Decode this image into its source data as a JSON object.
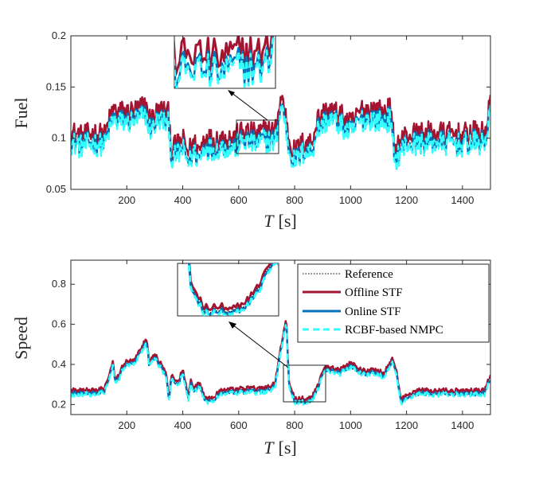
{
  "chart_data": [
    {
      "type": "line",
      "ylabel": "Fuel",
      "xlabel_var": "T",
      "xlabel_unit": "[s]",
      "xlim": [
        0,
        1500
      ],
      "ylim": [
        0.05,
        0.2
      ],
      "xticks": [
        200,
        400,
        600,
        800,
        1000,
        1200,
        1400
      ],
      "xtick_labels": [
        "200",
        "400",
        "600",
        "800",
        "1000",
        "1200",
        "1400"
      ],
      "yticks": [
        0.05,
        0.1,
        0.15,
        0.2
      ],
      "ytick_labels": [
        "0.05",
        "0.1",
        "0.15",
        "0.2"
      ],
      "zoom_window_x": [
        595,
        745
      ],
      "zoom_window_y": [
        0.085,
        0.117
      ],
      "baseline_x": [
        0,
        40,
        80,
        120,
        150,
        160,
        200,
        240,
        270,
        280,
        320,
        350,
        360,
        380,
        400,
        420,
        440,
        460,
        480,
        500,
        540,
        580,
        620,
        660,
        700,
        730,
        750,
        760,
        780,
        800,
        840,
        860,
        880,
        920,
        960,
        1000,
        1040,
        1080,
        1120,
        1140,
        1160,
        1180,
        1200,
        1240,
        1300,
        1360,
        1400,
        1440,
        1480,
        1500
      ],
      "baseline_y": [
        0.098,
        0.093,
        0.097,
        0.094,
        0.12,
        0.118,
        0.117,
        0.12,
        0.124,
        0.11,
        0.12,
        0.115,
        0.08,
        0.085,
        0.09,
        0.078,
        0.088,
        0.08,
        0.095,
        0.09,
        0.093,
        0.092,
        0.099,
        0.095,
        0.1,
        0.097,
        0.13,
        0.128,
        0.09,
        0.078,
        0.09,
        0.087,
        0.11,
        0.12,
        0.115,
        0.105,
        0.12,
        0.12,
        0.117,
        0.12,
        0.08,
        0.09,
        0.095,
        0.096,
        0.097,
        0.096,
        0.095,
        0.097,
        0.096,
        0.13
      ],
      "series": [
        {
          "name": "Offline STF",
          "color": "#a2142f",
          "offset": 0.008
        },
        {
          "name": "Online STF",
          "color": "#0072bd",
          "offset": 0.0
        },
        {
          "name": "RCBF-based NMPC",
          "color": "#33ffff",
          "offset": -0.002
        }
      ]
    },
    {
      "type": "line",
      "ylabel": "Speed",
      "xlabel_var": "T",
      "xlabel_unit": "[s]",
      "xlim": [
        0,
        1500
      ],
      "ylim": [
        0.15,
        0.92
      ],
      "xticks": [
        200,
        400,
        600,
        800,
        1000,
        1200,
        1400
      ],
      "xtick_labels": [
        "200",
        "400",
        "600",
        "800",
        "1000",
        "1200",
        "1400"
      ],
      "yticks": [
        0.2,
        0.4,
        0.6,
        0.8
      ],
      "ytick_labels": [
        "0.2",
        "0.4",
        "0.6",
        "0.8"
      ],
      "zoom_window_x": [
        760,
        915
      ],
      "zoom_window_y": [
        0.2,
        0.37
      ],
      "baseline_x": [
        0,
        60,
        120,
        150,
        160,
        190,
        230,
        270,
        280,
        300,
        340,
        350,
        360,
        380,
        400,
        420,
        430,
        440,
        460,
        480,
        500,
        540,
        600,
        660,
        700,
        730,
        760,
        770,
        780,
        800,
        840,
        860,
        880,
        900,
        920,
        960,
        1000,
        1040,
        1080,
        1120,
        1140,
        1150,
        1160,
        1180,
        1200,
        1240,
        1300,
        1360,
        1420,
        1480,
        1500
      ],
      "baseline_y": [
        0.26,
        0.26,
        0.27,
        0.4,
        0.3,
        0.4,
        0.42,
        0.52,
        0.4,
        0.44,
        0.35,
        0.22,
        0.34,
        0.3,
        0.36,
        0.23,
        0.32,
        0.27,
        0.3,
        0.22,
        0.22,
        0.26,
        0.27,
        0.27,
        0.27,
        0.3,
        0.55,
        0.62,
        0.3,
        0.22,
        0.22,
        0.23,
        0.27,
        0.36,
        0.38,
        0.36,
        0.4,
        0.36,
        0.36,
        0.35,
        0.4,
        0.42,
        0.38,
        0.22,
        0.24,
        0.26,
        0.26,
        0.26,
        0.26,
        0.26,
        0.34
      ],
      "series": [
        {
          "name": "Reference",
          "color": "#000000",
          "offset": 0.0
        },
        {
          "name": "Offline STF",
          "color": "#a2142f",
          "offset": 0.01
        },
        {
          "name": "Online STF",
          "color": "#0072bd",
          "offset": -0.005
        },
        {
          "name": "RCBF-based NMPC",
          "color": "#33ffff",
          "offset": -0.01
        }
      ]
    }
  ],
  "legend": {
    "items": [
      "Reference",
      "Offline STF",
      "Online STF",
      "RCBF-based NMPC"
    ]
  }
}
